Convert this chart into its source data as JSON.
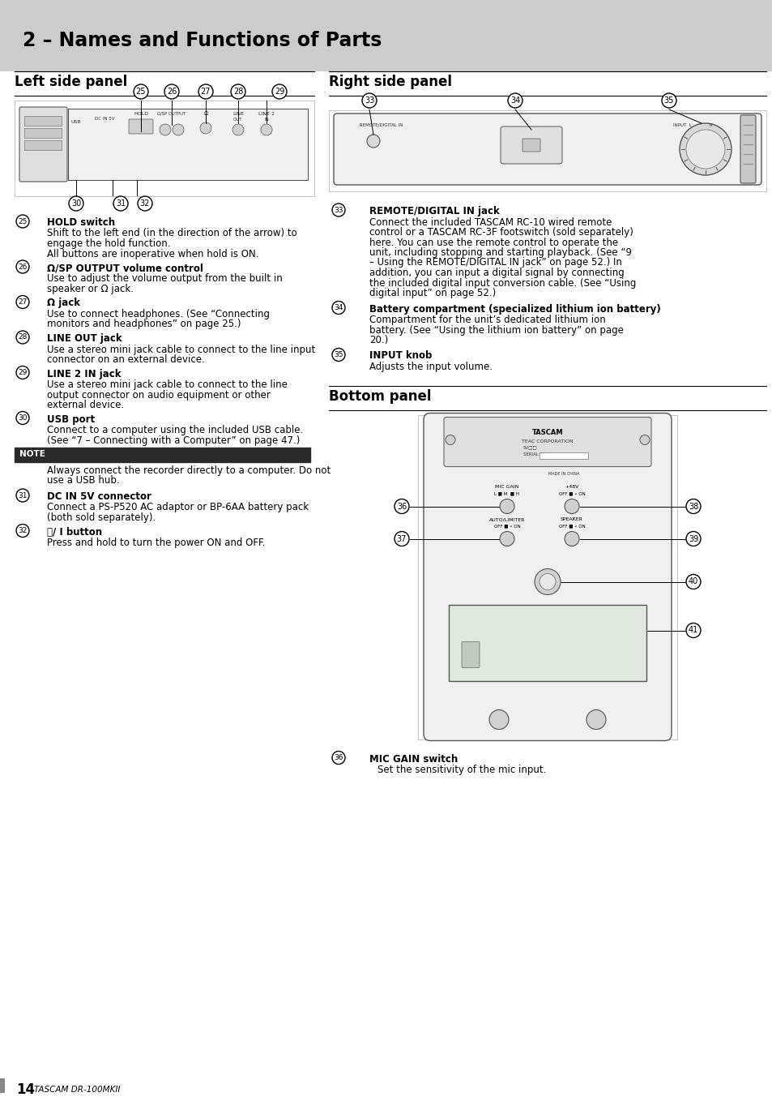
{
  "title": "2 – Names and Functions of Parts",
  "title_bg": "#cccccc",
  "page_bg": "#ffffff",
  "left_section_title": "Left side panel",
  "right_section_title": "Right side panel",
  "bottom_section_title": "Bottom panel",
  "page_number": "14",
  "page_label": "TASCAM DR-100MKII",
  "left_items": [
    {
      "num": "25",
      "bold": "HOLD switch",
      "text": "Shift to the left end (in the direction of the arrow) to\nengage the hold function.\nAll buttons are inoperative when hold is ON."
    },
    {
      "num": "26",
      "bold": "Ω/SP OUTPUT volume control",
      "text": "Use to adjust the volume output from the built in\nspeaker or Ω jack."
    },
    {
      "num": "27",
      "bold": "Ω jack",
      "text": "Use to connect headphones. (See “Connecting\nmonitors and headphones” on page 25.)"
    },
    {
      "num": "28",
      "bold": "LINE OUT jack",
      "text": "Use a stereo mini jack cable to connect to the line input\nconnector on an external device."
    },
    {
      "num": "29",
      "bold": "LINE 2 IN jack",
      "text": "Use a stereo mini jack cable to connect to the line\noutput connector on audio equipment or other\nexternal device."
    },
    {
      "num": "30",
      "bold": "USB port",
      "text": "Connect to a computer using the included USB cable.\n(See “7 – Connecting with a Computer” on page 47.)"
    },
    {
      "num": "31",
      "bold": "DC IN 5V connector",
      "text": "Connect a PS-P520 AC adaptor or BP-6AA battery pack\n(both sold separately)."
    },
    {
      "num": "32",
      "bold": "⏻/ I button",
      "text": "Press and hold to turn the power ON and OFF."
    }
  ],
  "right_items": [
    {
      "num": "33",
      "bold": "REMOTE/DIGITAL IN jack",
      "text": "Connect the included TASCAM RC-10 wired remote\ncontrol or a TASCAM RC-3F footswitch (sold separately)\nhere. You can use the remote control to operate the\nunit, including stopping and starting playback. (See “9\n– Using the REMOTE/DIGITAL IN jack” on page 52.) In\naddition, you can input a digital signal by connecting\nthe included digital input conversion cable. (See “Using\ndigital input” on page 52.)"
    },
    {
      "num": "34",
      "bold": "Battery compartment (specialized lithium ion battery)",
      "text": "Compartment for the unit’s dedicated lithium ion\nbattery. (See “Using the lithium ion battery” on page\n20.)"
    },
    {
      "num": "35",
      "bold": "INPUT knob",
      "text": "Adjusts the input volume."
    }
  ],
  "note_text": "Always connect the recorder directly to a computer. Do not\nuse a USB hub.",
  "bottom_items": [
    {
      "num": "36",
      "bold": "MIC GAIN switch",
      "text": "Set the sensitivity of the mic input."
    }
  ]
}
